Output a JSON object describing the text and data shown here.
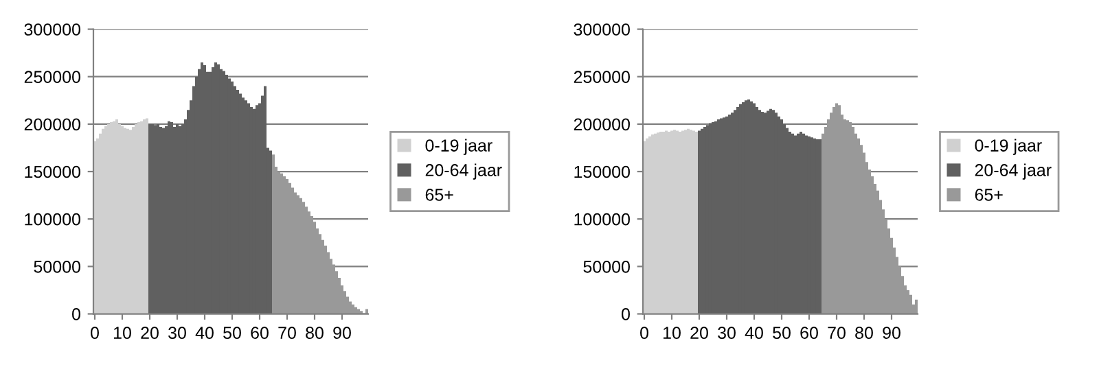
{
  "chart_data": [
    {
      "type": "bar",
      "categories": [
        "0",
        null,
        null,
        null,
        null,
        null,
        null,
        null,
        null,
        null,
        "10",
        null,
        null,
        null,
        null,
        null,
        null,
        null,
        null,
        null,
        "20",
        null,
        null,
        null,
        null,
        null,
        null,
        null,
        null,
        null,
        "30",
        null,
        null,
        null,
        null,
        null,
        null,
        null,
        null,
        null,
        "40",
        null,
        null,
        null,
        null,
        null,
        null,
        null,
        null,
        null,
        "50",
        null,
        null,
        null,
        null,
        null,
        null,
        null,
        null,
        null,
        "60",
        null,
        null,
        null,
        null,
        null,
        null,
        null,
        null,
        null,
        "70",
        null,
        null,
        null,
        null,
        null,
        null,
        null,
        null,
        null,
        "80",
        null,
        null,
        null,
        null,
        null,
        null,
        null,
        null,
        null,
        "90",
        null,
        null,
        null,
        null,
        null,
        null,
        null,
        null,
        null
      ],
      "ylim": [
        0,
        300000
      ],
      "yticks": [
        0,
        50000,
        100000,
        150000,
        200000,
        250000,
        300000
      ],
      "grid": "y",
      "legend": "right",
      "series": [
        {
          "name": "0-19 jaar",
          "color": "#d0d0d0",
          "values": [
            182000,
            185000,
            190000,
            195000,
            198000,
            200000,
            202000,
            203000,
            205000,
            200000,
            198000,
            196000,
            195000,
            194000,
            197000,
            200000,
            202000,
            203000,
            205000,
            206000,
            null,
            null,
            null,
            null,
            null,
            null,
            null,
            null,
            null,
            null,
            null,
            null,
            null,
            null,
            null,
            null,
            null,
            null,
            null,
            null,
            null,
            null,
            null,
            null,
            null,
            null,
            null,
            null,
            null,
            null,
            null,
            null,
            null,
            null,
            null,
            null,
            null,
            null,
            null,
            null,
            null,
            null,
            null,
            null,
            null,
            null,
            null,
            null,
            null,
            null,
            null,
            null,
            null,
            null,
            null,
            null,
            null,
            null,
            null,
            null,
            null,
            null,
            null,
            null,
            null,
            null,
            null,
            null,
            null,
            null,
            null,
            null,
            null,
            null,
            null,
            null,
            null,
            null,
            null,
            null
          ]
        },
        {
          "name": "20-64 jaar",
          "color": "#606060",
          "values": [
            null,
            null,
            null,
            null,
            null,
            null,
            null,
            null,
            null,
            null,
            null,
            null,
            null,
            null,
            null,
            null,
            null,
            null,
            null,
            null,
            200000,
            200000,
            199000,
            200000,
            197000,
            196000,
            198000,
            203000,
            202000,
            197000,
            200000,
            198000,
            200000,
            205000,
            215000,
            225000,
            240000,
            250000,
            258000,
            265000,
            262000,
            255000,
            255000,
            260000,
            265000,
            263000,
            258000,
            256000,
            252000,
            248000,
            245000,
            240000,
            236000,
            232000,
            228000,
            225000,
            222000,
            218000,
            216000,
            220000,
            222000,
            230000,
            240000,
            175000,
            172000,
            null,
            null,
            null,
            null,
            null,
            null,
            null,
            null,
            null,
            null,
            null,
            null,
            null,
            null,
            null,
            null,
            null,
            null,
            null,
            null,
            null,
            null,
            null,
            null,
            null,
            null,
            null,
            null,
            null,
            null,
            null,
            null,
            null,
            null,
            null
          ]
        },
        {
          "name": "65+",
          "color": "#999999",
          "values": [
            null,
            null,
            null,
            null,
            null,
            null,
            null,
            null,
            null,
            null,
            null,
            null,
            null,
            null,
            null,
            null,
            null,
            null,
            null,
            null,
            null,
            null,
            null,
            null,
            null,
            null,
            null,
            null,
            null,
            null,
            null,
            null,
            null,
            null,
            null,
            null,
            null,
            null,
            null,
            null,
            null,
            null,
            null,
            null,
            null,
            null,
            null,
            null,
            null,
            null,
            null,
            null,
            null,
            null,
            null,
            null,
            null,
            null,
            null,
            null,
            null,
            null,
            null,
            null,
            null,
            168000,
            155000,
            150000,
            148000,
            145000,
            142000,
            138000,
            133000,
            128000,
            125000,
            122000,
            118000,
            113000,
            108000,
            103000,
            97000,
            90000,
            84000,
            78000,
            72000,
            65000,
            58000,
            52000,
            45000,
            38000,
            30000,
            24000,
            18000,
            13000,
            10000,
            7000,
            5000,
            3000,
            null,
            5000
          ]
        }
      ]
    },
    {
      "type": "bar",
      "categories": [
        "0",
        null,
        null,
        null,
        null,
        null,
        null,
        null,
        null,
        null,
        "10",
        null,
        null,
        null,
        null,
        null,
        null,
        null,
        null,
        null,
        "20",
        null,
        null,
        null,
        null,
        null,
        null,
        null,
        null,
        null,
        "30",
        null,
        null,
        null,
        null,
        null,
        null,
        null,
        null,
        null,
        "40",
        null,
        null,
        null,
        null,
        null,
        null,
        null,
        null,
        null,
        "50",
        null,
        null,
        null,
        null,
        null,
        null,
        null,
        null,
        null,
        "60",
        null,
        null,
        null,
        null,
        null,
        null,
        null,
        null,
        null,
        "70",
        null,
        null,
        null,
        null,
        null,
        null,
        null,
        null,
        null,
        "80",
        null,
        null,
        null,
        null,
        null,
        null,
        null,
        null,
        null,
        "90",
        null,
        null,
        null,
        null,
        null,
        null,
        null,
        null,
        null
      ],
      "ylim": [
        0,
        300000
      ],
      "yticks": [
        0,
        50000,
        100000,
        150000,
        200000,
        250000,
        300000
      ],
      "grid": "y",
      "legend": "right",
      "series": [
        {
          "name": "0-19 jaar",
          "color": "#d0d0d0",
          "values": [
            182000,
            185000,
            187000,
            189000,
            190000,
            191000,
            192000,
            192000,
            193000,
            192000,
            193000,
            194000,
            193000,
            192000,
            193000,
            194000,
            195000,
            194000,
            193000,
            192000,
            null,
            null,
            null,
            null,
            null,
            null,
            null,
            null,
            null,
            null,
            null,
            null,
            null,
            null,
            null,
            null,
            null,
            null,
            null,
            null,
            null,
            null,
            null,
            null,
            null,
            null,
            null,
            null,
            null,
            null,
            null,
            null,
            null,
            null,
            null,
            null,
            null,
            null,
            null,
            null,
            null,
            null,
            null,
            null,
            null,
            null,
            null,
            null,
            null,
            null,
            null,
            null,
            null,
            null,
            null,
            null,
            null,
            null,
            null,
            null,
            null,
            null,
            null,
            null,
            null,
            null,
            null,
            null,
            null,
            null,
            null,
            null,
            null,
            null,
            null,
            null,
            null,
            null,
            null,
            null
          ]
        },
        {
          "name": "20-64 jaar",
          "color": "#606060",
          "values": [
            null,
            null,
            null,
            null,
            null,
            null,
            null,
            null,
            null,
            null,
            null,
            null,
            null,
            null,
            null,
            null,
            null,
            null,
            null,
            null,
            193000,
            195000,
            197000,
            199000,
            201000,
            202000,
            203000,
            205000,
            206000,
            207000,
            208000,
            210000,
            212000,
            215000,
            218000,
            221000,
            223000,
            225000,
            226000,
            224000,
            222000,
            218000,
            215000,
            213000,
            212000,
            214000,
            216000,
            215000,
            212000,
            208000,
            205000,
            200000,
            196000,
            192000,
            190000,
            188000,
            190000,
            192000,
            190000,
            188000,
            187000,
            186000,
            185000,
            184000,
            184000,
            null,
            null,
            null,
            null,
            null,
            null,
            null,
            null,
            null,
            null,
            null,
            null,
            null,
            null,
            null,
            null,
            null,
            null,
            null,
            null,
            null,
            null,
            null,
            null,
            null,
            null,
            null,
            null,
            null,
            null,
            null,
            null,
            null,
            null,
            null
          ]
        },
        {
          "name": "65+",
          "color": "#999999",
          "values": [
            null,
            null,
            null,
            null,
            null,
            null,
            null,
            null,
            null,
            null,
            null,
            null,
            null,
            null,
            null,
            null,
            null,
            null,
            null,
            null,
            null,
            null,
            null,
            null,
            null,
            null,
            null,
            null,
            null,
            null,
            null,
            null,
            null,
            null,
            null,
            null,
            null,
            null,
            null,
            null,
            null,
            null,
            null,
            null,
            null,
            null,
            null,
            null,
            null,
            null,
            null,
            null,
            null,
            null,
            null,
            null,
            null,
            null,
            null,
            null,
            null,
            null,
            null,
            null,
            null,
            190000,
            197000,
            205000,
            212000,
            218000,
            222000,
            220000,
            210000,
            205000,
            204000,
            202000,
            197000,
            190000,
            185000,
            178000,
            170000,
            160000,
            152000,
            145000,
            137000,
            130000,
            120000,
            110000,
            100000,
            90000,
            80000,
            70000,
            60000,
            50000,
            40000,
            30000,
            25000,
            20000,
            10000,
            15000
          ]
        }
      ]
    }
  ]
}
